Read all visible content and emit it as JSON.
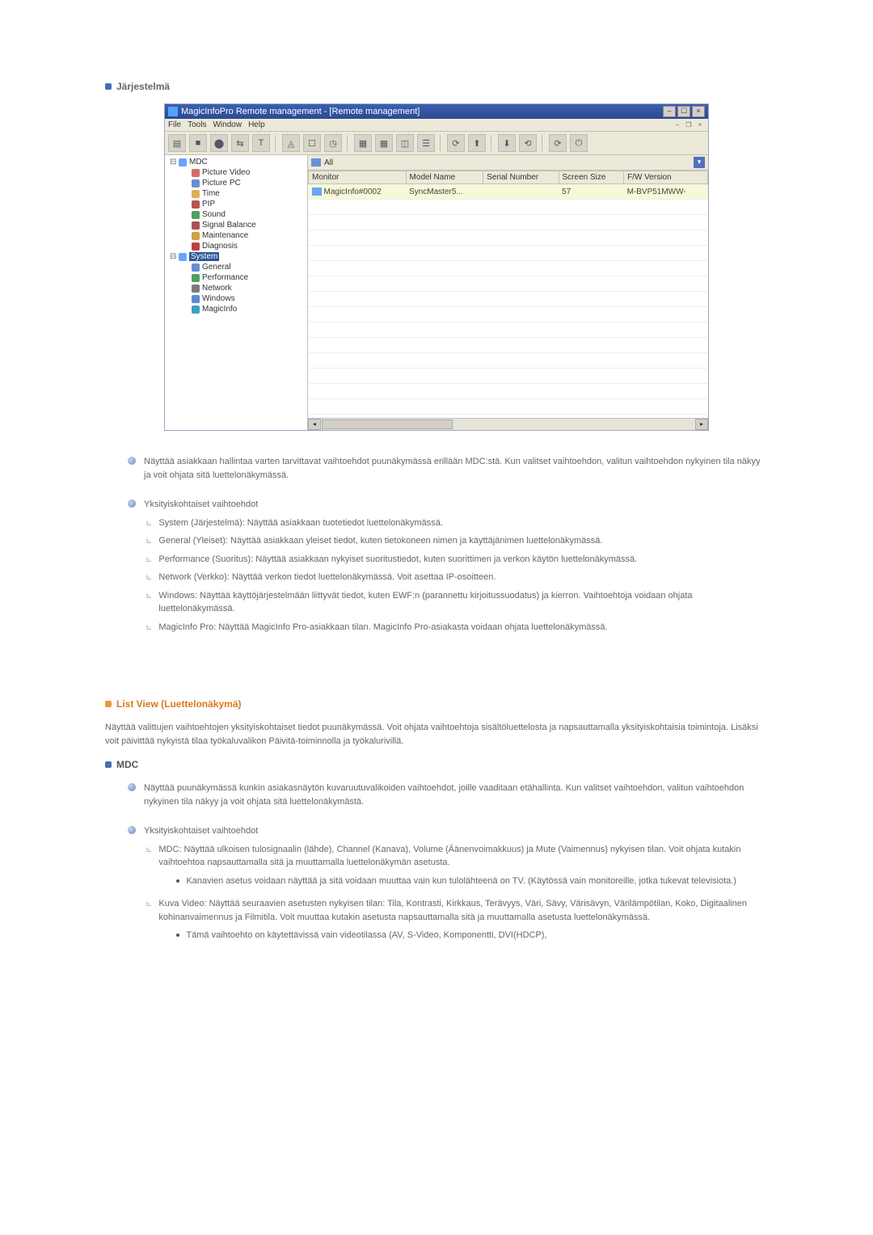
{
  "colors": {
    "blue_bullet": "#4a6db0",
    "orange": "#d97a1a",
    "text": "#666666"
  },
  "heading1": "Järjestelmä",
  "screenshot": {
    "title": "MagicInfoPro Remote management - [Remote management]",
    "menus": [
      "File",
      "Tools",
      "Window",
      "Help"
    ],
    "toolbar_glyphs": [
      "▤",
      "■",
      "⬤",
      "⇆",
      "T",
      "◬",
      "☐",
      "◷",
      "▦",
      "▦",
      "◫",
      "☰",
      "⟳",
      "⬆",
      "⬇",
      "⟲",
      "⟳",
      "⏻"
    ],
    "tree": {
      "root": "MDC",
      "mdc_children": [
        {
          "label": "Picture Video",
          "ico": "#d46a6a"
        },
        {
          "label": "Picture PC",
          "ico": "#6a8ed4"
        },
        {
          "label": "Time",
          "ico": "#e0b050"
        },
        {
          "label": "PIP",
          "ico": "#c05050"
        },
        {
          "label": "Sound",
          "ico": "#50a060"
        },
        {
          "label": "Signal Balance",
          "ico": "#b05050"
        },
        {
          "label": "Maintenance",
          "ico": "#d0a040"
        },
        {
          "label": "Diagnosis",
          "ico": "#c04040"
        }
      ],
      "system": "System",
      "system_children": [
        {
          "label": "General",
          "ico": "#6a8ed4"
        },
        {
          "label": "Performance",
          "ico": "#50a060"
        },
        {
          "label": "Network",
          "ico": "#7a7a7a"
        },
        {
          "label": "Windows",
          "ico": "#5a8ad0"
        },
        {
          "label": "MagicInfo",
          "ico": "#40a0c0"
        }
      ]
    },
    "list": {
      "tab": "All",
      "columns": [
        "Monitor",
        "Model Name",
        "Serial Number",
        "Screen Size",
        "F/W Version"
      ],
      "row": {
        "monitor": "MagicInfo#0002",
        "model": "SyncMaster5...",
        "serial": "",
        "size": "57",
        "fw": "M-BVP51MWW-"
      }
    }
  },
  "para1": "Näyttää asiakkaan hallintaa varten tarvittavat vaihtoehdot puunäkymässä erillään MDC:stä. Kun valitset vaihtoehdon, valitun vaihtoehdon nykyinen tila näkyy ja voit ohjata sitä luettelonäkymässä.",
  "detail_heading": "Yksityiskohtaiset vaihtoehdot",
  "details": [
    "System (Järjestelmä): Näyttää asiakkaan tuotetiedot luettelonäkymässä.",
    "General (Yleiset): Näyttää asiakkaan yleiset tiedot, kuten tietokoneen nimen ja käyttäjänimen luettelonäkymässä.",
    "Performance (Suoritus): Näyttää asiakkaan nykyiset suoritustiedot, kuten suorittimen ja verkon käytön luettelonäkymässä.",
    "Network (Verkko): Näyttää verkon tiedot luettelonäkymässä. Voit asettaa IP-osoitteen.",
    "Windows: Näyttää käyttöjärjestelmään liittyvät tiedot, kuten EWF:n (parannettu kirjoitussuodatus) ja kierron. Vaihtoehtoja voidaan ohjata luettelonäkymässä.",
    "MagicInfo Pro: Näyttää MagicInfo Pro-asiakkaan tilan. MagicInfo Pro-asiakasta voidaan ohjata luettelonäkymässä."
  ],
  "section2_heading": "List View (Luettelonäkymä)",
  "section2_intro": "Näyttää valittujen vaihtoehtojen yksityiskohtaiset tiedot puunäkymässä. Voit ohjata vaihtoehtoja sisältöluettelosta ja napsauttamalla yksityiskohtaisia toimintoja. Lisäksi voit päivittää nykyistä tilaa työkaluvalikon Päivitä-toiminnolla ja työkalurivillä.",
  "mdc_label": "MDC",
  "mdc_para": "Näyttää puunäkymässä kunkin asiakasnäytön kuvaruutuvalikoiden vaihtoehdot, joille vaaditaan etähallinta. Kun valitset vaihtoehdon, valitun vaihtoehdon nykyinen tila näkyy ja voit ohjata sitä luettelonäkymästä.",
  "mdc_details_heading": "Yksityiskohtaiset vaihtoehdot",
  "mdc_item1": "MDC: Näyttää ulkoisen tulosignaalin (lähde), Channel (Kanava), Volume (Äänenvoimakkuus) ja Mute (Vaimennus) nykyisen tilan. Voit ohjata kutakin vaihtoehtoa napsauttamalla sitä ja muuttamalla luettelonäkymän asetusta.",
  "mdc_item1_note": "Kanavien asetus voidaan näyttää ja sitä voidaan muuttaa vain kun tulolähteenä on TV. (Käytössä vain monitoreille, jotka tukevat televisiota.)",
  "mdc_item2": "Kuva Video: Näyttää seuraavien asetusten nykyisen tilan: Tila, Kontrasti, Kirkkaus, Terävyys, Väri, Sävy, Värisävyn, Värilämpötilan, Koko, Digitaalinen kohinanvaimennus ja Filmitila. Voit muuttaa kutakin asetusta napsauttamalla sitä ja muuttamalla asetusta luettelonäkymässä.",
  "mdc_item2_note": "Tämä vaihtoehto on käytettävissä vain videotilassa (AV, S-Video, Komponentti, DVI(HDCP),"
}
